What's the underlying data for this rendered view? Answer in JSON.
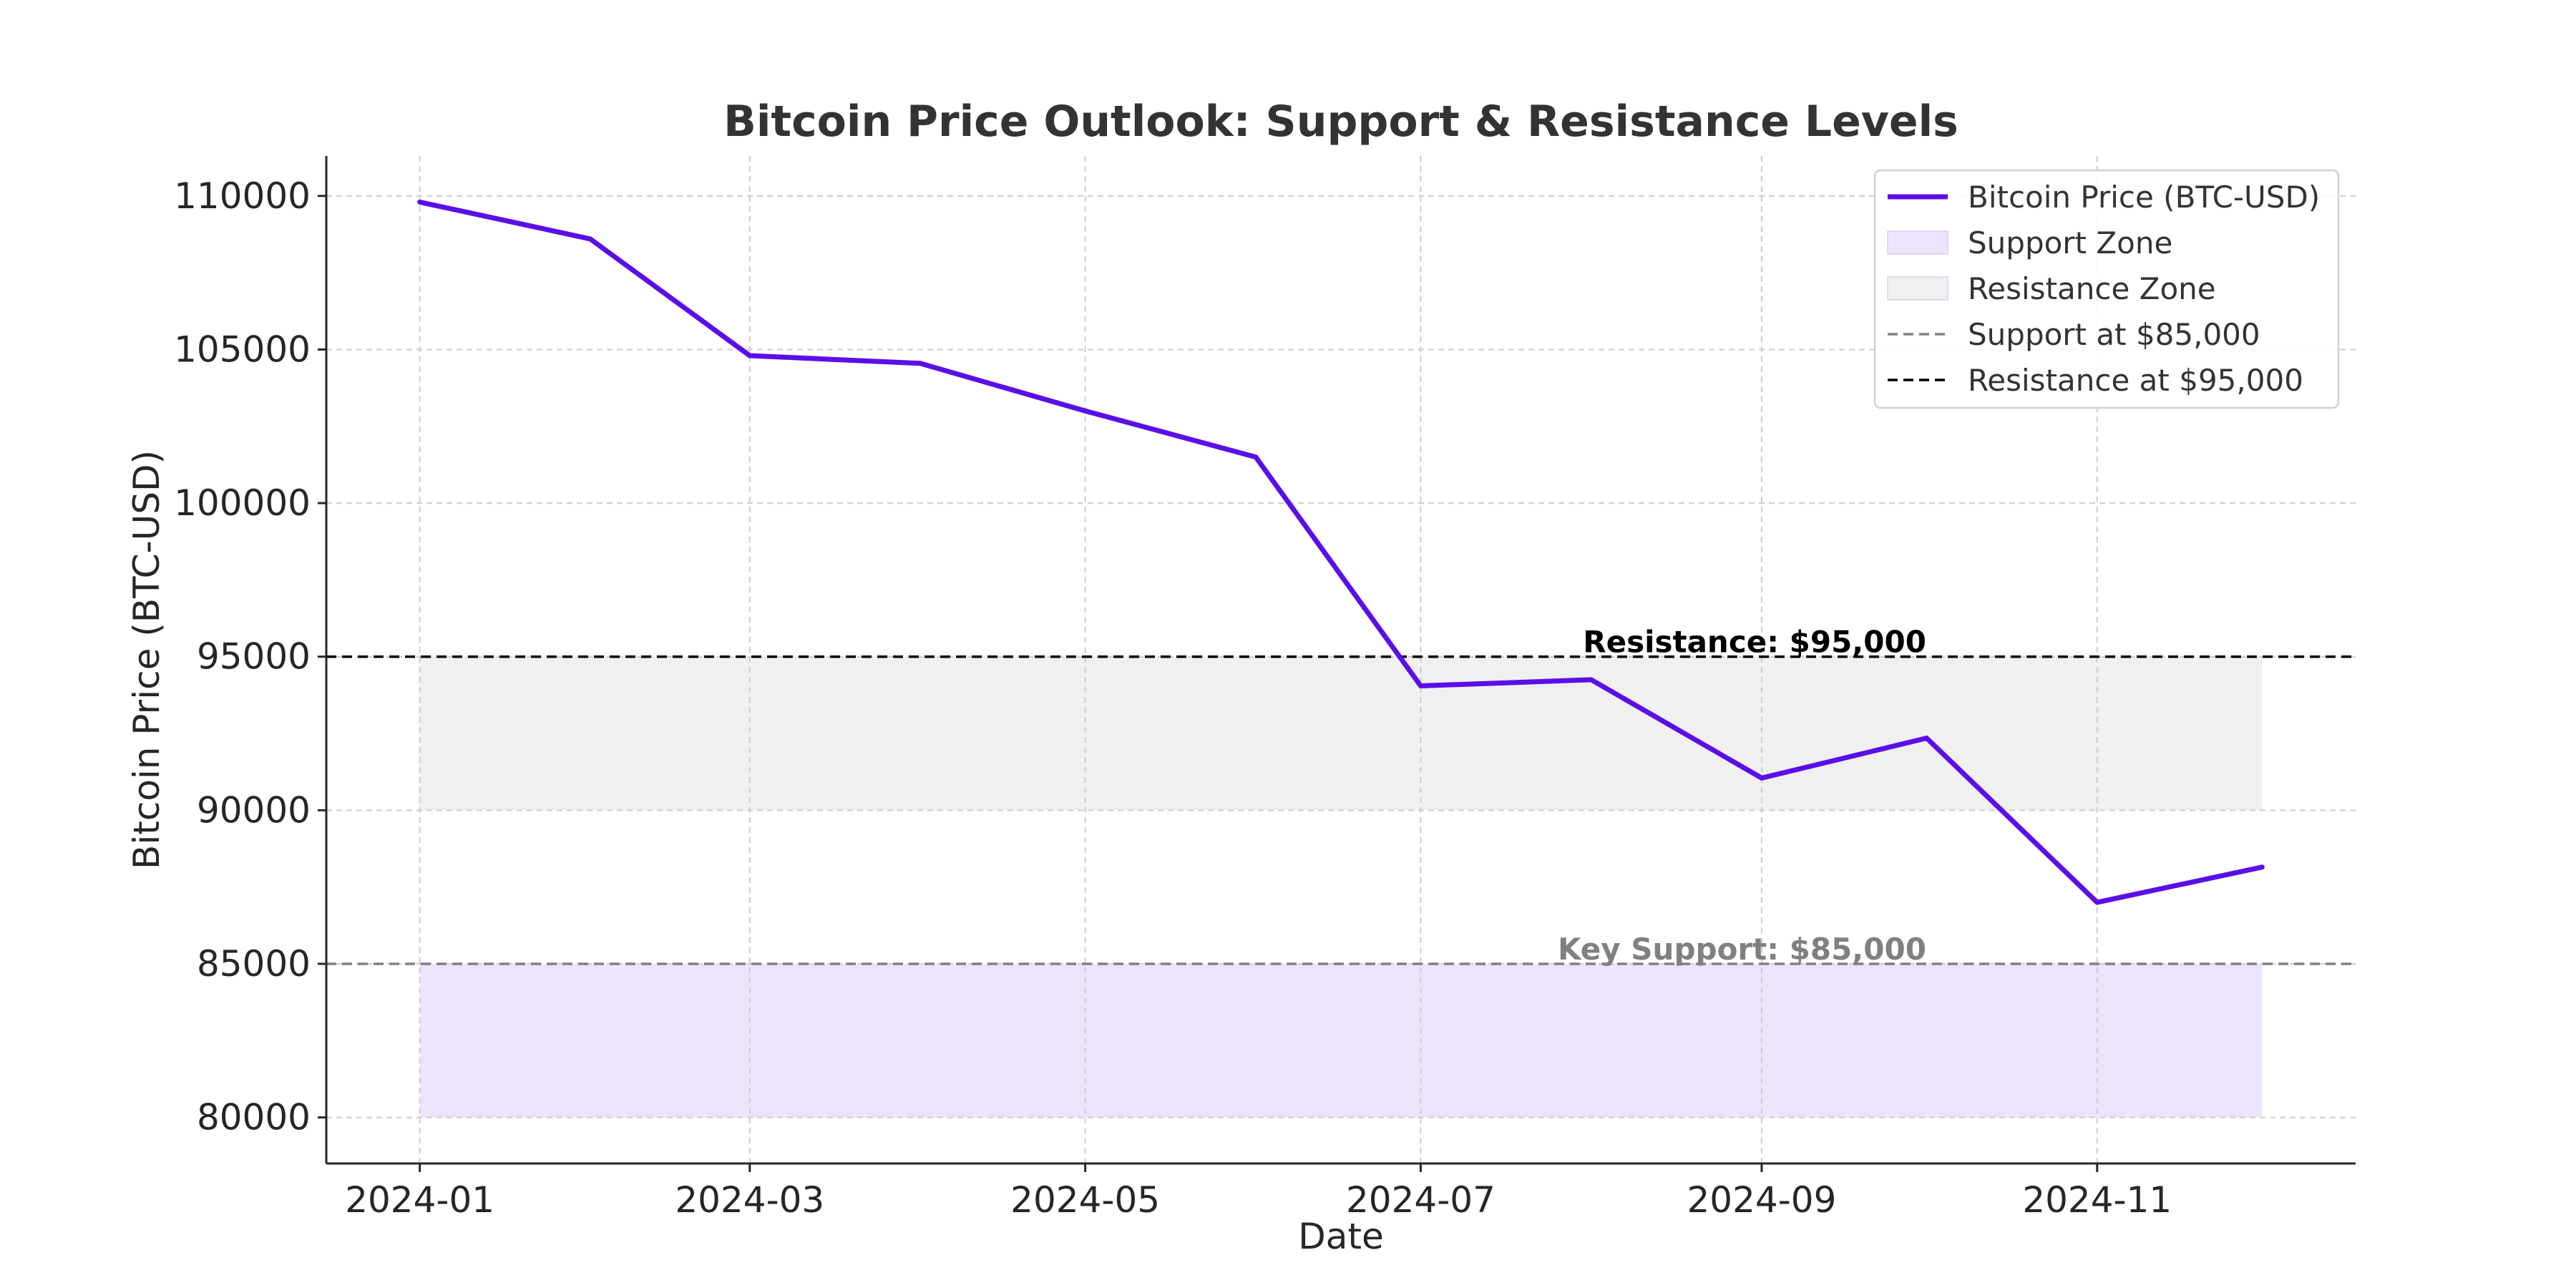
{
  "chart_data": {
    "type": "line",
    "title": "Bitcoin Price Outlook: Support & Resistance Levels",
    "xlabel": "Date",
    "ylabel": "Bitcoin Price (BTC-USD)",
    "x_tick_labels": [
      "2024-01",
      "2024-03",
      "2024-05",
      "2024-07",
      "2024-09",
      "2024-11"
    ],
    "y_tick_labels": [
      "80000",
      "85000",
      "90000",
      "95000",
      "100000",
      "105000",
      "110000"
    ],
    "ylim": [
      78500,
      111300
    ],
    "xlim": [
      "2023-12-15",
      "2024-12-18"
    ],
    "grid": true,
    "legend_position": "top-right",
    "series": [
      {
        "name": "Bitcoin Price (BTC-USD)",
        "color": "#5b0ee8",
        "x": [
          "2024-01-01",
          "2024-02-01",
          "2024-03-01",
          "2024-04-01",
          "2024-05-01",
          "2024-06-01",
          "2024-07-01",
          "2024-08-01",
          "2024-09-01",
          "2024-10-01",
          "2024-11-01",
          "2024-12-01"
        ],
        "values": [
          109800,
          108600,
          104800,
          104550,
          103000,
          101500,
          94050,
          94250,
          91050,
          92350,
          87000,
          88150
        ]
      }
    ],
    "zones": [
      {
        "name": "Support Zone",
        "from": 80000,
        "to": 85000,
        "x_start": "2024-01-01",
        "x_end": "2024-12-01",
        "color": "#ece4fd"
      },
      {
        "name": "Resistance Zone",
        "from": 90000,
        "to": 95000,
        "x_start": "2024-01-01",
        "x_end": "2024-12-01",
        "color": "#f0f0f0"
      }
    ],
    "reference_lines": [
      {
        "name": "Support at $85,000",
        "y": 85000,
        "color": "#808080",
        "style": "dashed"
      },
      {
        "name": "Resistance at $95,000",
        "y": 95000,
        "color": "#000000",
        "style": "dashed"
      }
    ],
    "annotations": [
      {
        "text": "Resistance: $95,000",
        "x": "2024-09-01",
        "y": 95000,
        "color": "#000000"
      },
      {
        "text": "Key Support: $85,000",
        "x": "2024-09-01",
        "y": 85000,
        "color": "#808080"
      }
    ]
  }
}
